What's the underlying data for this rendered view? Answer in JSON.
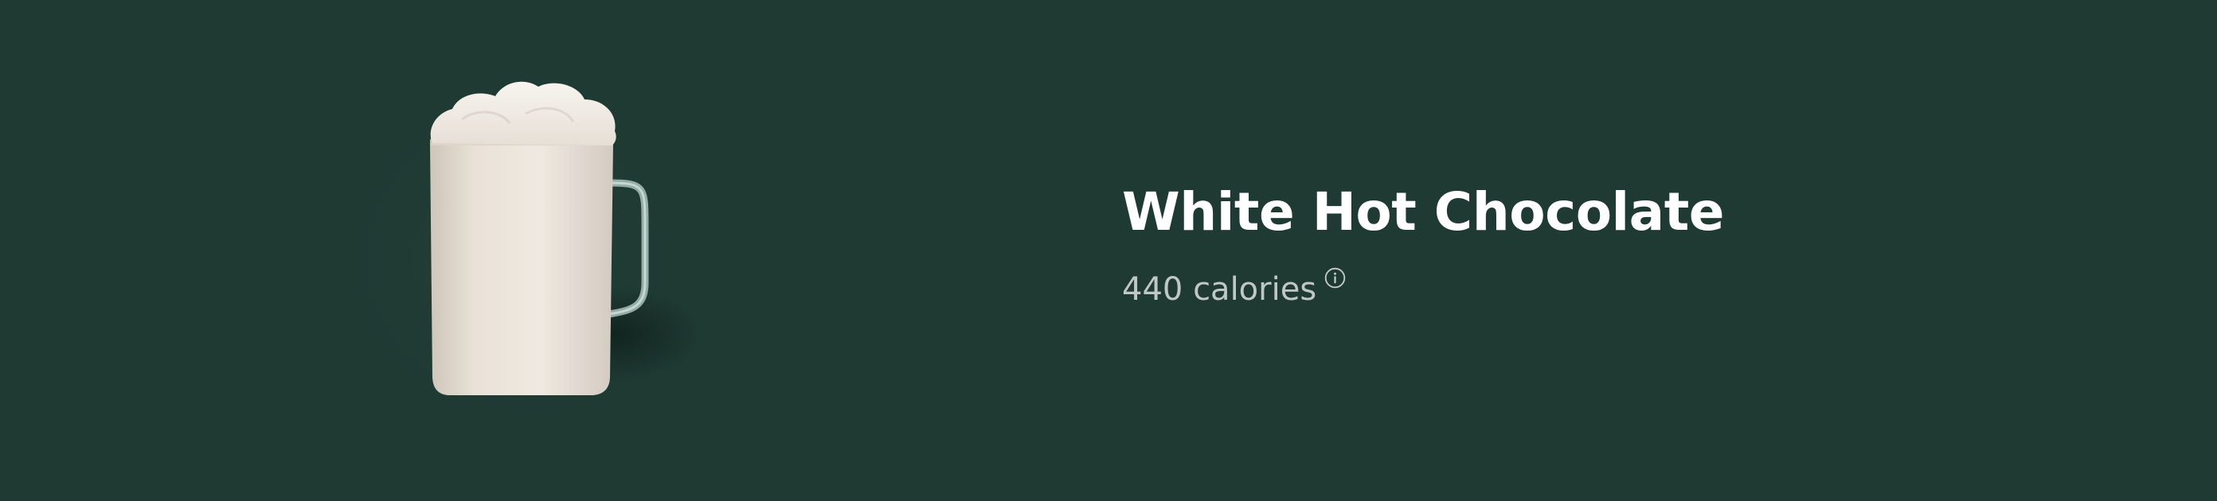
{
  "product": {
    "name": "White Hot Chocolate",
    "calories_text": "440 calories",
    "image_icon": "white-hot-chocolate-mug",
    "info_icon": "info-icon"
  },
  "colors": {
    "background": "#1f3933",
    "title": "#ffffff",
    "subtitle": "#bfc7c4"
  }
}
